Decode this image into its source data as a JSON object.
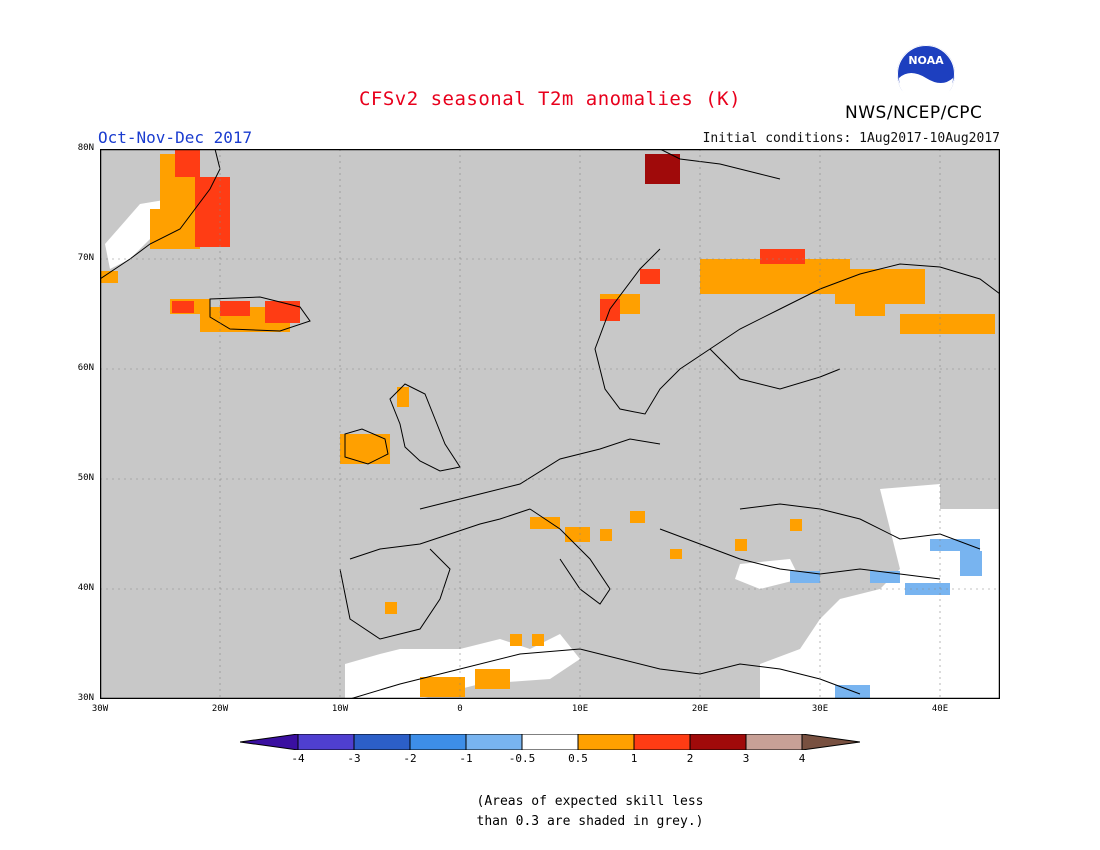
{
  "title": "CFSv2 seasonal T2m anomalies (K)",
  "season": "Oct-Nov-Dec 2017",
  "initial_conditions": "Initial conditions: 1Aug2017-10Aug2017",
  "agency": "NWS/NCEP/CPC",
  "logo_text": "NOAA",
  "lat_labels": [
    "80N",
    "70N",
    "60N",
    "50N",
    "40N",
    "30N"
  ],
  "lon_labels": [
    "30W",
    "20W",
    "10W",
    "0",
    "10E",
    "20E",
    "30E",
    "40E"
  ],
  "colorbar": {
    "labels": [
      "-4",
      "-3",
      "-2",
      "-1",
      "-0.5",
      "0.5",
      "1",
      "2",
      "3",
      "4"
    ],
    "colors": [
      "#3a0fa0",
      "#4f3fd0",
      "#2c5fc8",
      "#3d8ee8",
      "#78b4f0",
      "#ffffff",
      "#ffa000",
      "#ff3c14",
      "#a00a0a",
      "#c8a096",
      "#785040"
    ]
  },
  "note": [
    "(Areas of expected skill less",
    "than 0.3 are shaded in grey.)"
  ],
  "colors": {
    "grey_skill": "#c8c8c8",
    "title": "#e8001c",
    "season": "#1a3ccf"
  }
}
